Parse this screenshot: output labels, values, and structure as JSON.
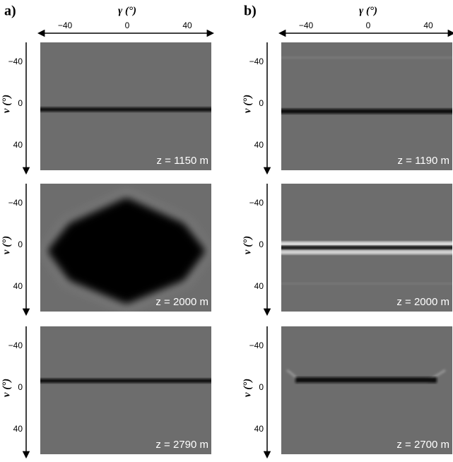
{
  "panels": [
    {
      "label": "a)",
      "x_axis": {
        "label": "γ (°)",
        "ticks": [
          "−40",
          "0",
          "40"
        ]
      },
      "rows": [
        {
          "y_axis": {
            "label": "ν (°)",
            "ticks": [
              "−40",
              "0",
              "40"
            ]
          },
          "annotation": "z = 1150 m"
        },
        {
          "y_axis": {
            "label": "ν (°)",
            "ticks": [
              "−40",
              "0",
              "40"
            ]
          },
          "annotation": "z = 2000 m"
        },
        {
          "y_axis": {
            "label": "ν (°)",
            "ticks": [
              "−40",
              "0",
              "40"
            ]
          },
          "annotation": "z = 2790 m"
        }
      ]
    },
    {
      "label": "b)",
      "x_axis": {
        "label": "γ (°)",
        "ticks": [
          "−40",
          "0",
          "40"
        ]
      },
      "rows": [
        {
          "y_axis": {
            "label": "ν (°)",
            "ticks": [
              "−40",
              "0",
              "40"
            ]
          },
          "annotation": "z = 1190 m"
        },
        {
          "y_axis": {
            "label": "ν (°)",
            "ticks": [
              "−40",
              "0",
              "40"
            ]
          },
          "annotation": "z = 2000 m"
        },
        {
          "y_axis": {
            "label": "ν (°)",
            "ticks": [
              "−40",
              "0",
              "40"
            ]
          },
          "annotation": "z = 2700 m"
        }
      ]
    }
  ]
}
